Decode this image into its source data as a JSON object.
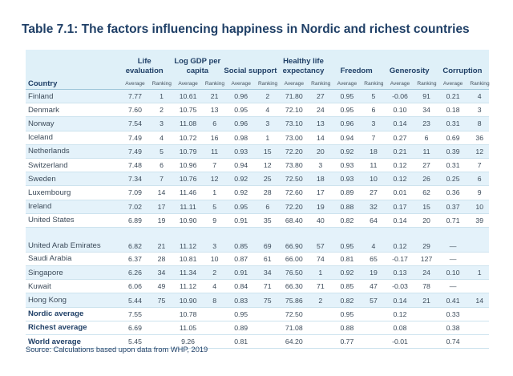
{
  "title": "Table 7.1: The factors influencing happiness in Nordic and richest countries",
  "headers": {
    "life": "Life evaluation",
    "gdp": "Log GDP per capita",
    "social": "Social support",
    "health": "Healthy life expectancy",
    "freedom": "Freedom",
    "generosity": "Generosity",
    "corruption": "Corruption",
    "country": "Country",
    "average": "Average",
    "ranking": "Ranking"
  },
  "rows": [
    {
      "country": "Finland",
      "v": [
        "7.77",
        "1",
        "10.61",
        "21",
        "0.96",
        "2",
        "71.80",
        "27",
        "0.95",
        "5",
        "-0.06",
        "91",
        "0.21",
        "4"
      ]
    },
    {
      "country": "Denmark",
      "v": [
        "7.60",
        "2",
        "10.75",
        "13",
        "0.95",
        "4",
        "72.10",
        "24",
        "0.95",
        "6",
        "0.10",
        "34",
        "0.18",
        "3"
      ]
    },
    {
      "country": "Norway",
      "v": [
        "7.54",
        "3",
        "11.08",
        "6",
        "0.96",
        "3",
        "73.10",
        "13",
        "0.96",
        "3",
        "0.14",
        "23",
        "0.31",
        "8"
      ]
    },
    {
      "country": "Iceland",
      "v": [
        "7.49",
        "4",
        "10.72",
        "16",
        "0.98",
        "1",
        "73.00",
        "14",
        "0.94",
        "7",
        "0.27",
        "6",
        "0.69",
        "36"
      ]
    },
    {
      "country": "Netherlands",
      "v": [
        "7.49",
        "5",
        "10.79",
        "11",
        "0.93",
        "15",
        "72.20",
        "20",
        "0.92",
        "18",
        "0.21",
        "11",
        "0.39",
        "12"
      ]
    },
    {
      "country": "Switzerland",
      "v": [
        "7.48",
        "6",
        "10.96",
        "7",
        "0.94",
        "12",
        "73.80",
        "3",
        "0.93",
        "11",
        "0.12",
        "27",
        "0.31",
        "7"
      ]
    },
    {
      "country": "Sweden",
      "v": [
        "7.34",
        "7",
        "10.76",
        "12",
        "0.92",
        "25",
        "72.50",
        "18",
        "0.93",
        "10",
        "0.12",
        "26",
        "0.25",
        "6"
      ]
    },
    {
      "country": "Luxembourg",
      "v": [
        "7.09",
        "14",
        "11.46",
        "1",
        "0.92",
        "28",
        "72.60",
        "17",
        "0.89",
        "27",
        "0.01",
        "62",
        "0.36",
        "9"
      ]
    },
    {
      "country": "Ireland",
      "v": [
        "7.02",
        "17",
        "11.11",
        "5",
        "0.95",
        "6",
        "72.20",
        "19",
        "0.88",
        "32",
        "0.17",
        "15",
        "0.37",
        "10"
      ]
    },
    {
      "country": "United States",
      "v": [
        "6.89",
        "19",
        "10.90",
        "9",
        "0.91",
        "35",
        "68.40",
        "40",
        "0.82",
        "64",
        "0.14",
        "20",
        "0.71",
        "39"
      ]
    },
    {
      "country": "United Arab Emirates",
      "tall": true,
      "v": [
        "6.82",
        "21",
        "11.12",
        "3",
        "0.85",
        "69",
        "66.90",
        "57",
        "0.95",
        "4",
        "0.12",
        "29",
        "",
        ""
      ]
    },
    {
      "country": "Saudi Arabia",
      "v": [
        "6.37",
        "28",
        "10.81",
        "10",
        "0.87",
        "61",
        "66.00",
        "74",
        "0.81",
        "65",
        "-0.17",
        "127",
        "",
        ""
      ]
    },
    {
      "country": "Singapore",
      "v": [
        "6.26",
        "34",
        "11.34",
        "2",
        "0.91",
        "34",
        "76.50",
        "1",
        "0.92",
        "19",
        "0.13",
        "24",
        "0.10",
        "1"
      ]
    },
    {
      "country": "Kuwait",
      "v": [
        "6.06",
        "49",
        "11.12",
        "4",
        "0.84",
        "71",
        "66.30",
        "71",
        "0.85",
        "47",
        "-0.03",
        "78",
        "",
        ""
      ]
    },
    {
      "country": "Hong Kong",
      "v": [
        "5.44",
        "75",
        "10.90",
        "8",
        "0.83",
        "75",
        "75.86",
        "2",
        "0.82",
        "57",
        "0.14",
        "21",
        "0.41",
        "14"
      ]
    }
  ],
  "dash_cells": [
    "—",
    "—",
    "—"
  ],
  "summary": [
    {
      "country": "Nordic average",
      "v": [
        "7.55",
        "",
        "10.78",
        "",
        "0.95",
        "",
        "72.50",
        "",
        "0.95",
        "",
        "0.12",
        "",
        "0.33",
        ""
      ]
    },
    {
      "country": "Richest average",
      "v": [
        "6.69",
        "",
        "11.05",
        "",
        "0.89",
        "",
        "71.08",
        "",
        "0.88",
        "",
        "0.08",
        "",
        "0.38",
        ""
      ]
    },
    {
      "country": "World average",
      "v": [
        "5.45",
        "",
        "9.26",
        "",
        "0.81",
        "",
        "64.20",
        "",
        "0.77",
        "",
        "-0.01",
        "",
        "0.74",
        ""
      ]
    }
  ],
  "source": "Source: Calculations based upon data from WHP, 2019"
}
